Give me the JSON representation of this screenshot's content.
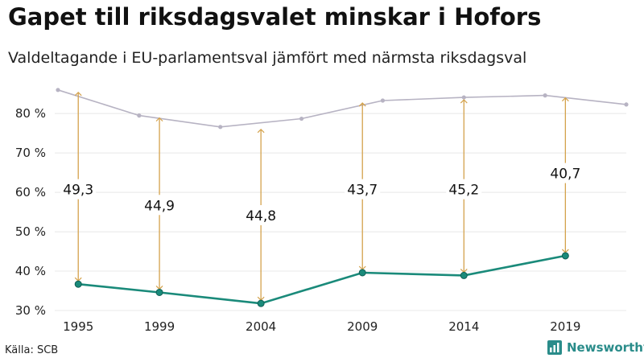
{
  "header": {
    "title": "Gapet till riksdagsvalet minskar i Hofors",
    "subtitle": "Valdeltagande i EU-parlamentsval jämfört med närmsta riksdagsval"
  },
  "footer": {
    "source": "Källa: SCB",
    "brand": "Newsworthy"
  },
  "colors": {
    "eu_line": "#1a8a7a",
    "eu_point": "#1a8a7a",
    "riksdag_line": "#b7b3c3",
    "gap_arrow": "#d4a24c",
    "grid": "#e8e8e8",
    "brand": "#2a8c8a"
  },
  "chart_data": {
    "type": "line",
    "title": "Gapet till riksdagsvalet minskar i Hofors",
    "subtitle": "Valdeltagande i EU-parlamentsval jämfört med närmsta riksdagsval",
    "x_ticks": [
      "1995",
      "1999",
      "2004",
      "2009",
      "2014",
      "2019"
    ],
    "xlim": [
      1994,
      2022
    ],
    "ylim": [
      30,
      88
    ],
    "y_ticks": [
      30,
      40,
      50,
      60,
      70,
      80
    ],
    "y_tick_labels": [
      "30 %",
      "40 %",
      "50 %",
      "60 %",
      "70 %",
      "80 %"
    ],
    "grid": true,
    "series": [
      {
        "name": "Riksdagsval",
        "x": [
          1994,
          1998,
          2002,
          2006,
          2010,
          2014,
          2018,
          2022
        ],
        "values": [
          86.0,
          79.5,
          76.6,
          78.7,
          83.3,
          84.1,
          84.6,
          82.3
        ]
      },
      {
        "name": "EU-parlamentsval",
        "x": [
          1995,
          1999,
          2004,
          2009,
          2014,
          2019
        ],
        "values": [
          36.7,
          34.6,
          31.8,
          39.6,
          38.9,
          43.9
        ]
      }
    ],
    "gaps": [
      {
        "x": 1995,
        "from": 36.7,
        "to": 86.0,
        "label": "49,3",
        "label_y": 60.7
      },
      {
        "x": 1999,
        "from": 34.6,
        "to": 79.5,
        "label": "44,9",
        "label_y": 56.7
      },
      {
        "x": 2004,
        "from": 31.8,
        "to": 76.6,
        "label": "44,8",
        "label_y": 54.1
      },
      {
        "x": 2009,
        "from": 39.6,
        "to": 83.3,
        "label": "43,7",
        "label_y": 60.7
      },
      {
        "x": 2014,
        "from": 38.9,
        "to": 84.1,
        "label": "45,2",
        "label_y": 60.7
      },
      {
        "x": 2019,
        "from": 43.9,
        "to": 84.6,
        "label": "40,7",
        "label_y": 64.8
      }
    ]
  }
}
